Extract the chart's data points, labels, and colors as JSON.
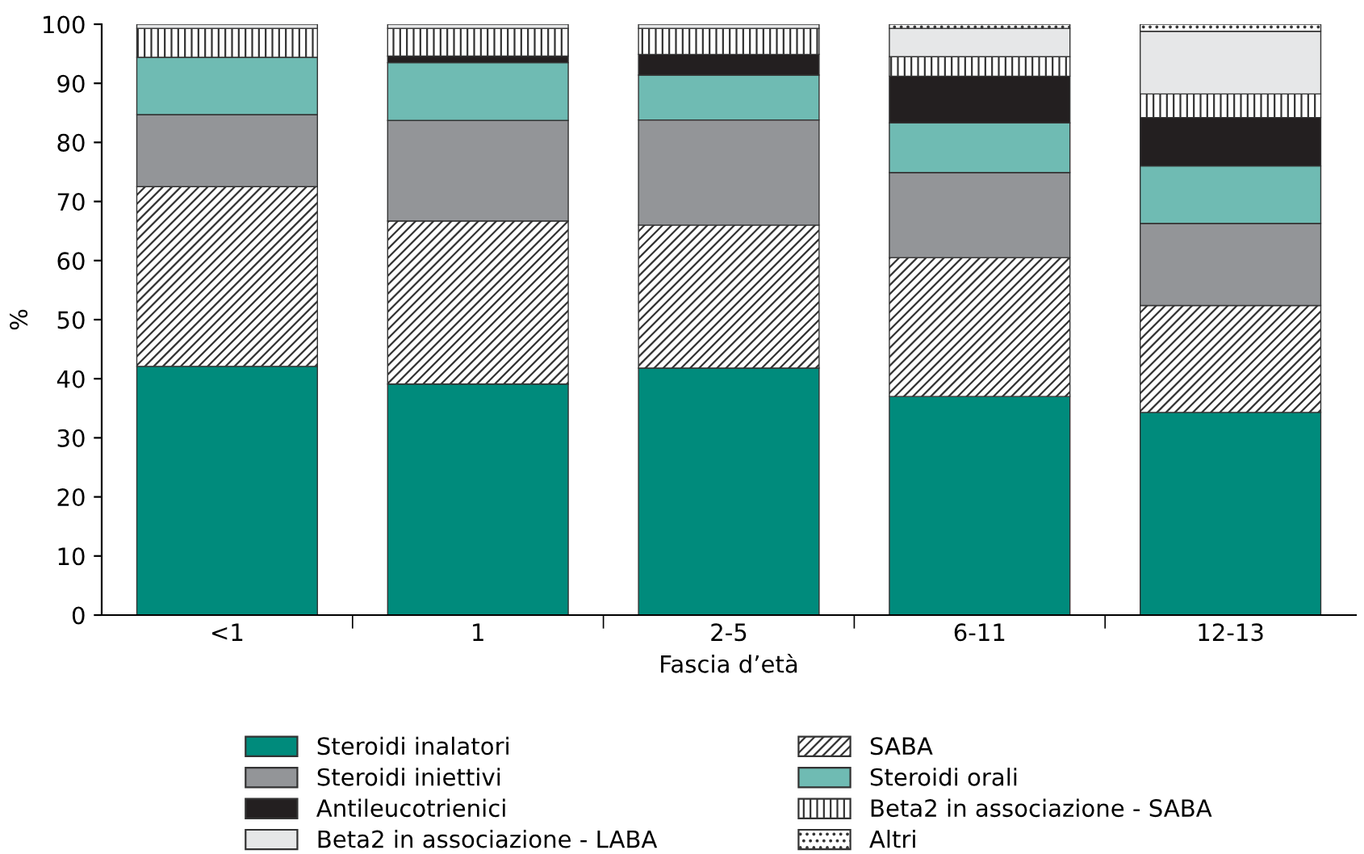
{
  "chart_data": {
    "type": "bar",
    "stacked": true,
    "xlabel": "Fascia d’età",
    "ylabel": "%",
    "categories": [
      "<1",
      "1",
      "2-5",
      "6-11",
      "12-13"
    ],
    "ylim": [
      0,
      100
    ],
    "yticks": [
      0,
      10,
      20,
      30,
      40,
      50,
      60,
      70,
      80,
      90,
      100
    ],
    "grid": false,
    "legend": "bottom",
    "series": [
      {
        "name": "Steroidi inalatori",
        "color": "#008b7c",
        "values": [
          42.1,
          39.1,
          41.8,
          37.0,
          34.3
        ]
      },
      {
        "name": "SABA",
        "color": "#ffffff",
        "values": [
          30.4,
          27.6,
          24.2,
          23.5,
          18.1
        ]
      },
      {
        "name": "Steroidi iniettivi",
        "color": "#939598",
        "values": [
          12.2,
          17.0,
          17.8,
          14.4,
          13.9
        ]
      },
      {
        "name": "Steroidi orali",
        "color": "#6fbbb3",
        "values": [
          9.7,
          9.8,
          7.6,
          8.4,
          9.7
        ]
      },
      {
        "name": "Antileucotrienici",
        "color": "#231f20",
        "values": [
          null,
          1.1,
          3.5,
          7.9,
          8.2
        ]
      },
      {
        "name": "Beta2 in associazione - SABA",
        "color": "#ffffff",
        "values": [
          4.9,
          4.7,
          4.4,
          3.3,
          4.0
        ]
      },
      {
        "name": "Beta2 in associazione - LABA",
        "color": "#e6e7e8",
        "values": [
          0.7,
          0.7,
          0.7,
          4.8,
          10.6
        ]
      },
      {
        "name": "Altri",
        "color": "#ffffff",
        "values": [
          null,
          null,
          null,
          0.7,
          1.2
        ]
      }
    ]
  }
}
